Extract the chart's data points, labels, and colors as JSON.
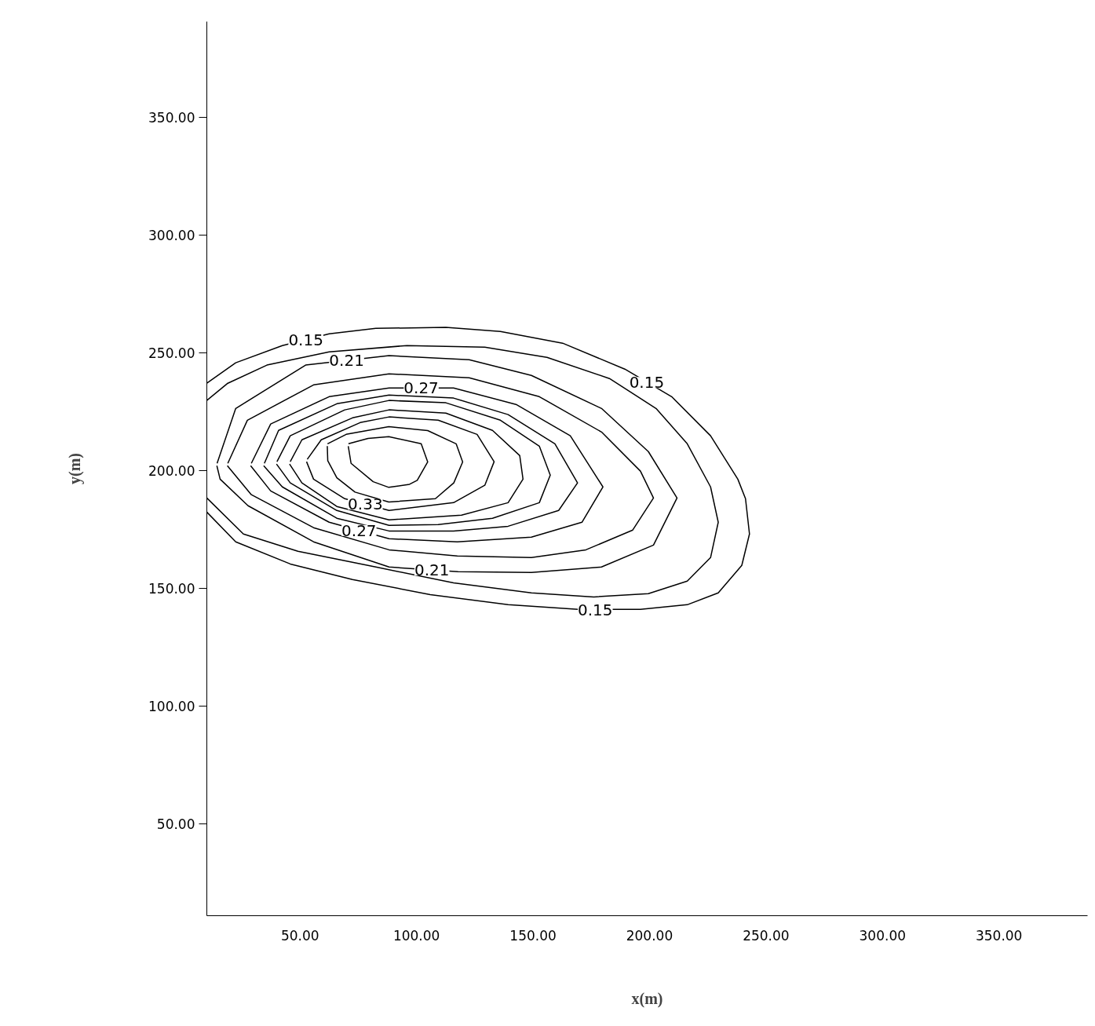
{
  "chart_data": {
    "type": "line",
    "xlabel": "x(m)",
    "ylabel": "y(m)",
    "xlim": [
      10,
      388
    ],
    "ylim": [
      11,
      390.5
    ],
    "xticks": [
      {
        "value": 50,
        "label": "50.00"
      },
      {
        "value": 100,
        "label": "100.00"
      },
      {
        "value": 150,
        "label": "150.00"
      },
      {
        "value": 200,
        "label": "200.00"
      },
      {
        "value": 250,
        "label": "250.00"
      },
      {
        "value": 300,
        "label": "300.00"
      },
      {
        "value": 350,
        "label": "350.00"
      }
    ],
    "yticks": [
      {
        "value": 50,
        "label": "50.00"
      },
      {
        "value": 100,
        "label": "100.00"
      },
      {
        "value": 150,
        "label": "150.00"
      },
      {
        "value": 200,
        "label": "200.00"
      },
      {
        "value": 250,
        "label": "250.00"
      },
      {
        "value": 300,
        "label": "300.00"
      },
      {
        "value": 350,
        "label": "350.00"
      }
    ],
    "series": [
      {
        "color": "#000000",
        "x": [
          10,
          22.4,
          42.4,
          62.5,
          82.5,
          112.6,
          136,
          162.7,
          189.4,
          209.5,
          226.2,
          237.9,
          241.2,
          242.9,
          239.6,
          229.5,
          216.2,
          196.1,
          169.4,
          139.3,
          105.9,
          72.5,
          45.8,
          22.4,
          10
        ],
        "values": [
          237,
          245.7,
          253,
          258,
          260.3,
          260.7,
          259,
          254,
          243,
          231.3,
          214.7,
          196.3,
          188,
          173,
          159.7,
          148,
          143,
          141,
          141,
          143,
          147.3,
          153.7,
          160.3,
          169.7,
          182.3
        ]
      },
      {
        "color": "#000000",
        "x": [
          10,
          19,
          35.8,
          62.5,
          95.9,
          129.3,
          156,
          182.8,
          202.8,
          216.2,
          226.2,
          229.5,
          226.2,
          216.2,
          199.5,
          176.1,
          149.3,
          115.9,
          82.5,
          49.1,
          25.7,
          10
        ],
        "values": [
          229.7,
          237,
          244.7,
          250.3,
          253,
          252.3,
          248,
          239,
          226.3,
          211.3,
          193,
          178,
          163,
          153,
          147.7,
          146.3,
          148,
          152.3,
          159,
          165.7,
          173,
          188.3
        ]
      },
      {
        "color": "#000000",
        "x": [
          14.4,
          22.4,
          52.4,
          88.2,
          122.6,
          149.3,
          179.4,
          199.5,
          211.8,
          201.7,
          179.4,
          149.3,
          117.8,
          88.2,
          55.8,
          27.7,
          15.7,
          14.3
        ],
        "values": [
          203,
          226.3,
          244.7,
          248.7,
          247,
          240.3,
          226.3,
          208,
          188.3,
          168.3,
          159,
          156.7,
          157,
          159,
          169.7,
          185,
          196.3,
          202
        ]
      },
      {
        "color": "#000000",
        "x": [
          19,
          27.4,
          55.8,
          88.2,
          122.6,
          152.7,
          179.4,
          196.1,
          201.7,
          192.8,
          172.7,
          149.3,
          117.5,
          88.2,
          55.8,
          29.1,
          18.8
        ],
        "values": [
          203,
          221.3,
          236.3,
          241,
          239.3,
          231.3,
          216.3,
          199.7,
          188.3,
          174.7,
          166.3,
          163,
          163.7,
          166.3,
          175.7,
          189.7,
          202
        ]
      },
      {
        "color": "#000000",
        "x": [
          29.1,
          37.4,
          62.5,
          88.2,
          115.9,
          142.7,
          166,
          180,
          171,
          149.3,
          117.5,
          88.2,
          62.5,
          37.4,
          28.8
        ],
        "values": [
          203,
          219.7,
          231.3,
          235,
          235,
          228,
          214.7,
          193,
          178,
          171.7,
          169.7,
          171,
          178,
          191.3,
          202
        ]
      },
      {
        "color": "#000000",
        "x": [
          34.7,
          40.8,
          65.8,
          88.2,
          115.9,
          139.3,
          159.4,
          169.1,
          161,
          139.3,
          115.9,
          88.2,
          65.8,
          42.4,
          34.4
        ],
        "values": [
          203,
          217,
          228.3,
          232,
          230.7,
          223.7,
          211.3,
          194.7,
          183,
          176.3,
          174.3,
          174.3,
          179.7,
          193,
          202
        ]
      },
      {
        "color": "#000000",
        "x": [
          40.1,
          45.8,
          69.2,
          88.2,
          112.6,
          136,
          152.7,
          157.4,
          152.7,
          132.6,
          109.3,
          88.2,
          65.8,
          45.8,
          39.9
        ],
        "values": [
          203.7,
          214.7,
          225.7,
          229.7,
          228.7,
          221.3,
          210.3,
          198,
          186.3,
          179.7,
          177,
          176.7,
          183,
          194.7,
          202.7
        ]
      },
      {
        "color": "#000000",
        "x": [
          45.8,
          50.8,
          72.5,
          88.2,
          112.6,
          132.6,
          144.3,
          145.7,
          139.3,
          119.3,
          88.2,
          65.8,
          50.8,
          45.5
        ],
        "values": [
          203.7,
          213,
          222.3,
          225.7,
          224.3,
          217,
          206.3,
          196.3,
          186.3,
          181,
          179,
          184.7,
          194.7,
          202.7
        ]
      },
      {
        "color": "#000000",
        "x": [
          53.1,
          59.1,
          75.8,
          88.2,
          109.3,
          126,
          133.3,
          129.3,
          115.9,
          88.2,
          69.2,
          55.8,
          52.8
        ],
        "values": [
          204.7,
          213,
          220.3,
          222.7,
          221.3,
          215.3,
          203.7,
          193.7,
          186.3,
          183,
          188,
          196.3,
          203.7
        ]
      },
      {
        "color": "#000000",
        "x": [
          61.8,
          69.8,
          88.1,
          104.8,
          117,
          119.8,
          116,
          108.1,
          88.1,
          73.6,
          65.8,
          61.9,
          61.7
        ],
        "values": [
          211.3,
          215.3,
          218.6,
          216.9,
          211.3,
          203.6,
          194.7,
          188,
          186.6,
          190.8,
          196.9,
          204.1,
          210.3
        ]
      },
      {
        "color": "#000000",
        "x": [
          70.8,
          79.2,
          88.1,
          102,
          104.8,
          100.3,
          97,
          88.1,
          81.4,
          71.9,
          70.7
        ],
        "values": [
          211.3,
          213.6,
          214.3,
          211.3,
          203.6,
          195.8,
          194.1,
          192.8,
          195.2,
          203,
          210.3
        ]
      }
    ],
    "annotations": [
      {
        "text": "0.15",
        "x": 52.5,
        "y": 255.5
      },
      {
        "text": "0.21",
        "x": 70,
        "y": 246.7
      },
      {
        "text": "0.27",
        "x": 102,
        "y": 235
      },
      {
        "text": "0.15",
        "x": 198.8,
        "y": 237.3
      },
      {
        "text": "0.33",
        "x": 78,
        "y": 185.7
      },
      {
        "text": "0.27",
        "x": 75.3,
        "y": 174.5
      },
      {
        "text": "0.21",
        "x": 106.6,
        "y": 157.8
      },
      {
        "text": "0.15",
        "x": 176.7,
        "y": 140.7
      }
    ]
  }
}
